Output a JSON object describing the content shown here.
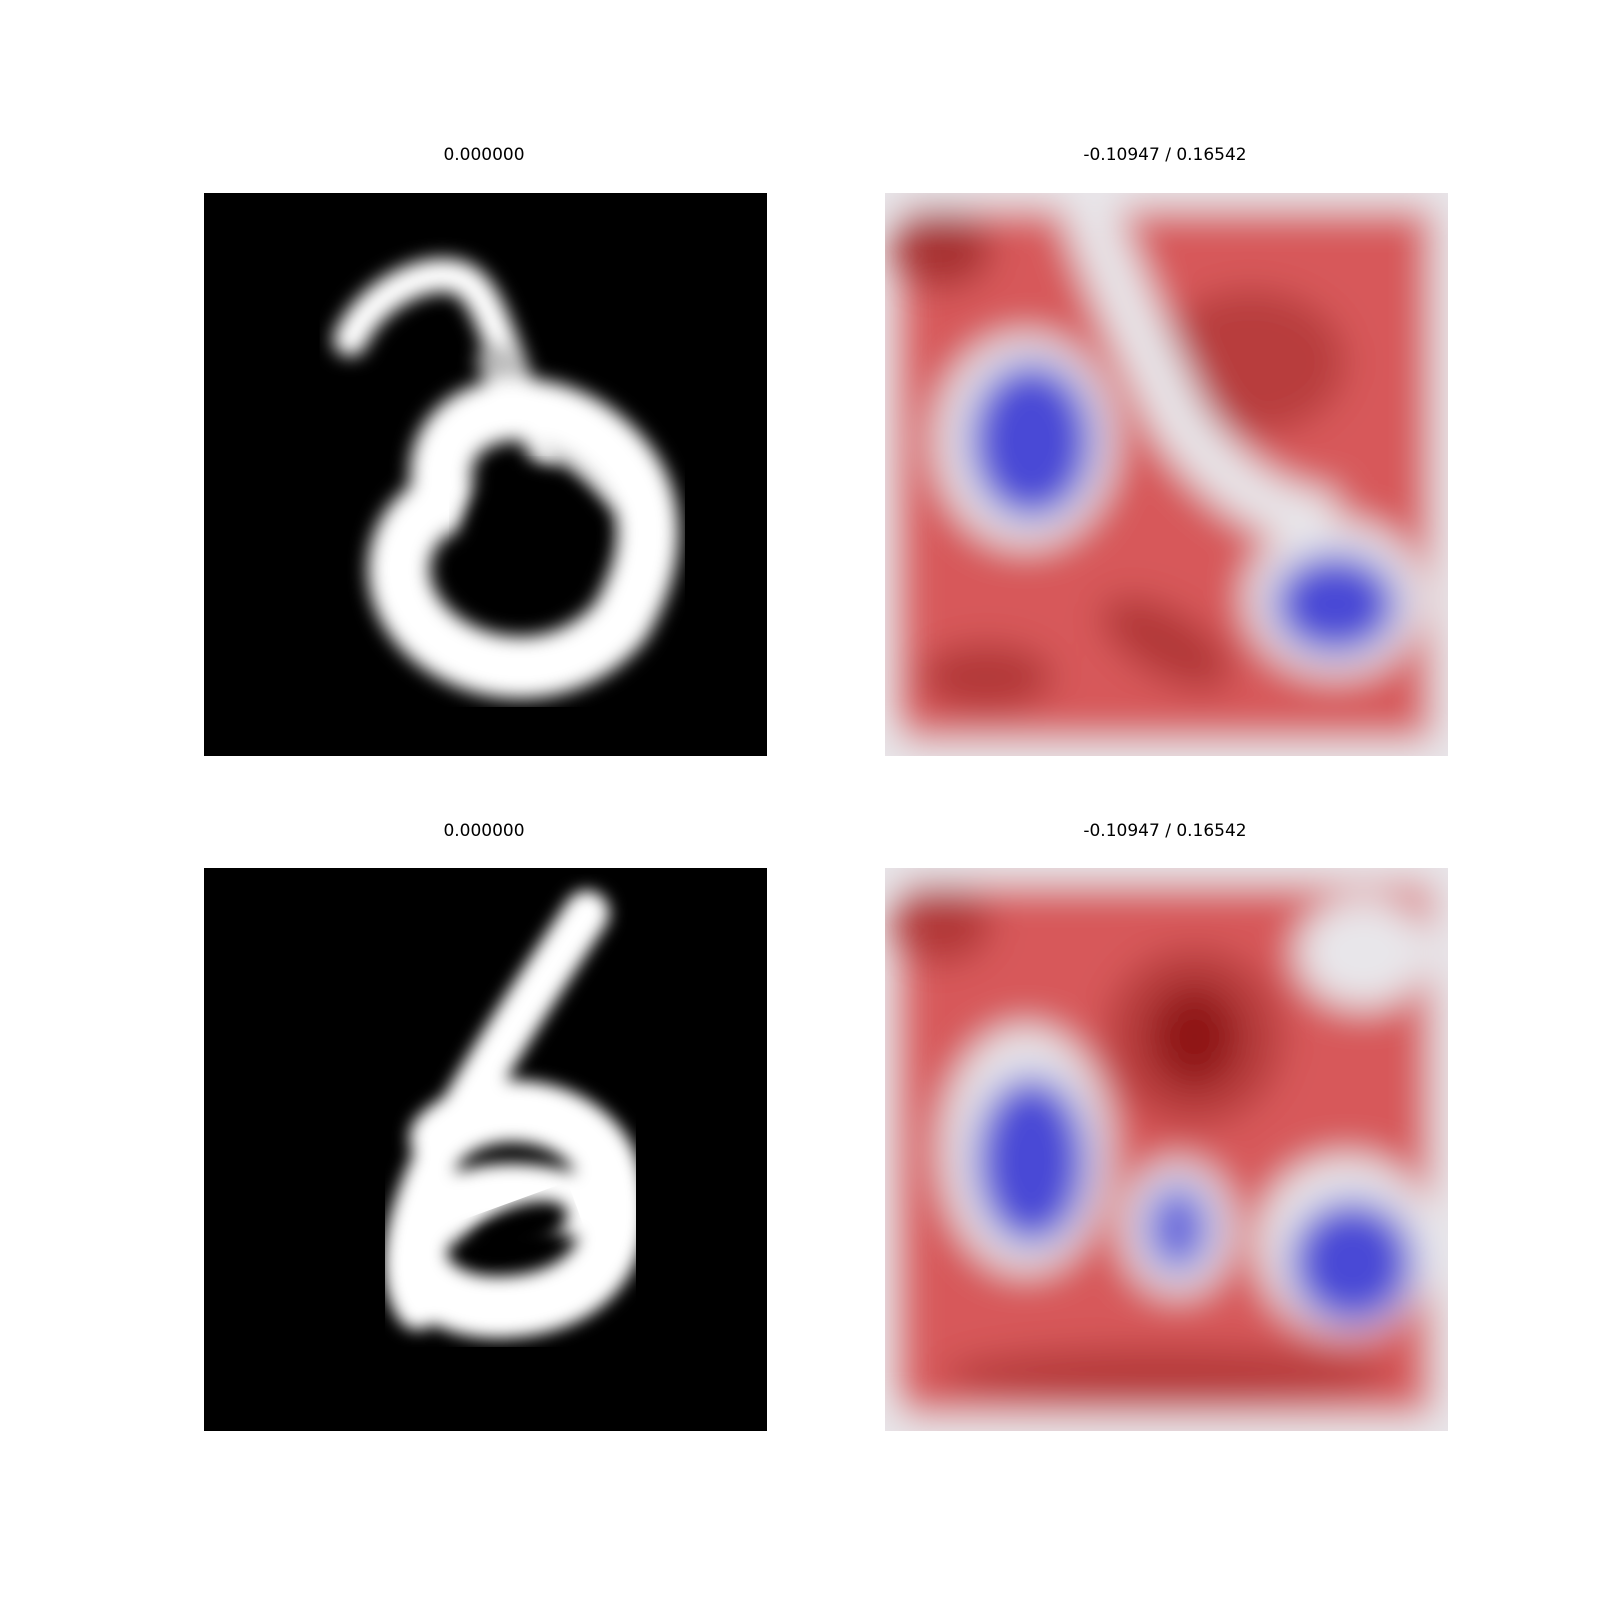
{
  "figure": {
    "panels": [
      {
        "title": "0.000000",
        "kind": "digit",
        "digit": "2"
      },
      {
        "title": "-0.10947 / 0.16542",
        "kind": "heatmap",
        "digit": "2"
      },
      {
        "title": "0.000000",
        "kind": "digit",
        "digit": "6"
      },
      {
        "title": "-0.10947 / 0.16542",
        "kind": "heatmap",
        "digit": "6"
      }
    ],
    "colors": {
      "digit_background": "#000000",
      "digit_stroke": "#ffffff",
      "heat_red": "#d7585a",
      "heat_dark_red": "#9e1e1e",
      "heat_blue": "#4a4ad6",
      "heat_neutral": "#e8e6ea"
    }
  }
}
